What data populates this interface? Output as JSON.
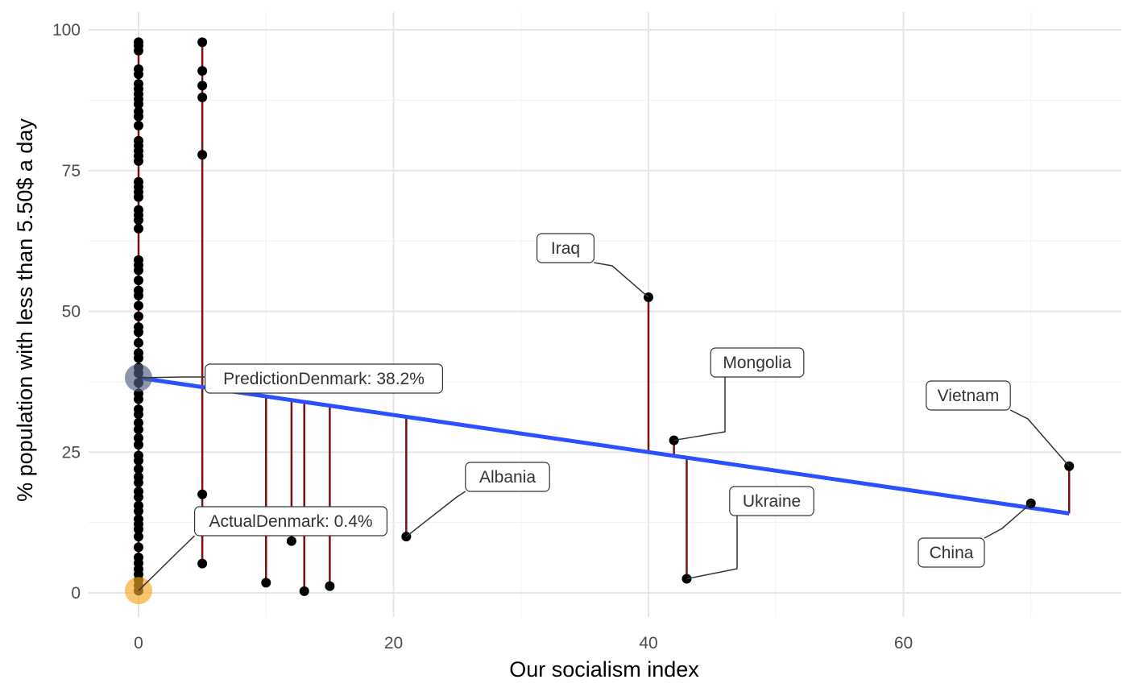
{
  "chart_data": {
    "type": "scatter",
    "xlabel": "Our socialism index",
    "ylabel": "% population with less than 5.50$ a day",
    "xlim": [
      -4,
      76
    ],
    "ylim": [
      -4,
      103
    ],
    "x_ticks": [
      0,
      20,
      40,
      60
    ],
    "y_ticks": [
      0,
      25,
      50,
      75,
      100
    ],
    "grid": true,
    "colors": {
      "point": "#000000",
      "residual": "#7a1010",
      "fit_line": "#2b50ff",
      "grid_major": "#e6e6e6",
      "grid_minor": "#f0f0f0",
      "prediction_marker": "#4f5f80",
      "actual_marker": "#f5a623"
    },
    "regression": {
      "intercept": 38.2,
      "slope": -0.33,
      "x_range": [
        0,
        73
      ]
    },
    "points": [
      {
        "x": 0,
        "y": 97.8
      },
      {
        "x": 0,
        "y": 97.2
      },
      {
        "x": 0,
        "y": 96.3
      },
      {
        "x": 0,
        "y": 93.0
      },
      {
        "x": 0,
        "y": 92.1
      },
      {
        "x": 0,
        "y": 90.4
      },
      {
        "x": 0,
        "y": 89.5
      },
      {
        "x": 0,
        "y": 88.6
      },
      {
        "x": 0,
        "y": 87.7
      },
      {
        "x": 0,
        "y": 86.8
      },
      {
        "x": 0,
        "y": 85.5
      },
      {
        "x": 0,
        "y": 84.6
      },
      {
        "x": 0,
        "y": 83.0
      },
      {
        "x": 0,
        "y": 80.3
      },
      {
        "x": 0,
        "y": 79.4
      },
      {
        "x": 0,
        "y": 78.5
      },
      {
        "x": 0,
        "y": 77.6
      },
      {
        "x": 0,
        "y": 76.7
      },
      {
        "x": 0,
        "y": 73.0
      },
      {
        "x": 0,
        "y": 72.1
      },
      {
        "x": 0,
        "y": 71.2
      },
      {
        "x": 0,
        "y": 70.3
      },
      {
        "x": 0,
        "y": 68.0
      },
      {
        "x": 0,
        "y": 67.1
      },
      {
        "x": 0,
        "y": 66.2
      },
      {
        "x": 0,
        "y": 64.7
      },
      {
        "x": 0,
        "y": 59.1
      },
      {
        "x": 0,
        "y": 58.2
      },
      {
        "x": 0,
        "y": 57.3
      },
      {
        "x": 0,
        "y": 55.5
      },
      {
        "x": 0,
        "y": 53.7
      },
      {
        "x": 0,
        "y": 52.8
      },
      {
        "x": 0,
        "y": 51.0
      },
      {
        "x": 0,
        "y": 49.1
      },
      {
        "x": 0,
        "y": 47.2
      },
      {
        "x": 0,
        "y": 46.3
      },
      {
        "x": 0,
        "y": 44.4
      },
      {
        "x": 0,
        "y": 42.6
      },
      {
        "x": 0,
        "y": 41.7
      },
      {
        "x": 0,
        "y": 40.0
      },
      {
        "x": 0,
        "y": 39.0
      },
      {
        "x": 0,
        "y": 37.3
      },
      {
        "x": 0,
        "y": 35.4
      },
      {
        "x": 0,
        "y": 34.4
      },
      {
        "x": 0,
        "y": 32.6
      },
      {
        "x": 0,
        "y": 31.7
      },
      {
        "x": 0,
        "y": 30.2
      },
      {
        "x": 0,
        "y": 29.0
      },
      {
        "x": 0,
        "y": 27.5
      },
      {
        "x": 0,
        "y": 26.3
      },
      {
        "x": 0,
        "y": 24.4
      },
      {
        "x": 0,
        "y": 23.5
      },
      {
        "x": 0,
        "y": 22.0
      },
      {
        "x": 0,
        "y": 20.6
      },
      {
        "x": 0,
        "y": 19.6
      },
      {
        "x": 0,
        "y": 18.0
      },
      {
        "x": 0,
        "y": 17.0
      },
      {
        "x": 0,
        "y": 15.5
      },
      {
        "x": 0,
        "y": 14.5
      },
      {
        "x": 0,
        "y": 13.1
      },
      {
        "x": 0,
        "y": 12.2
      },
      {
        "x": 0,
        "y": 11.3
      },
      {
        "x": 0,
        "y": 10.0
      },
      {
        "x": 0,
        "y": 8.1
      },
      {
        "x": 0,
        "y": 6.3
      },
      {
        "x": 0,
        "y": 5.3
      },
      {
        "x": 0,
        "y": 4.2
      },
      {
        "x": 0,
        "y": 3.3
      },
      {
        "x": 0,
        "y": 2.3
      },
      {
        "x": 0,
        "y": 1.3
      },
      {
        "x": 0,
        "y": 0.4
      },
      {
        "x": 5,
        "y": 97.8
      },
      {
        "x": 5,
        "y": 92.7
      },
      {
        "x": 5,
        "y": 90.1
      },
      {
        "x": 5,
        "y": 88.0
      },
      {
        "x": 5,
        "y": 77.8
      },
      {
        "x": 5,
        "y": 17.5
      },
      {
        "x": 5,
        "y": 5.2
      },
      {
        "x": 10,
        "y": 1.8
      },
      {
        "x": 12,
        "y": 9.2
      },
      {
        "x": 13,
        "y": 0.3
      },
      {
        "x": 15,
        "y": 1.2
      },
      {
        "x": 21,
        "y": 10.0
      },
      {
        "x": 40,
        "y": 52.5
      },
      {
        "x": 42,
        "y": 27.1
      },
      {
        "x": 43,
        "y": 2.5
      },
      {
        "x": 70,
        "y": 15.9
      },
      {
        "x": 73,
        "y": 22.5
      }
    ],
    "annotations": [
      {
        "label": "Iraq",
        "x": 40,
        "y": 52.5
      },
      {
        "label": "Mongolia",
        "x": 42,
        "y": 27.1
      },
      {
        "label": "Vietnam",
        "x": 73,
        "y": 22.5
      },
      {
        "label": "Albania",
        "x": 21,
        "y": 10.0
      },
      {
        "label": "Ukraine",
        "x": 43,
        "y": 2.5
      },
      {
        "label": "China",
        "x": 70,
        "y": 15.9
      },
      {
        "label": "PredictionDenmark: 38.2%",
        "x": 0,
        "y": 38.2
      },
      {
        "label": "ActualDenmark: 0.4%",
        "x": 0,
        "y": 0.4
      }
    ]
  }
}
